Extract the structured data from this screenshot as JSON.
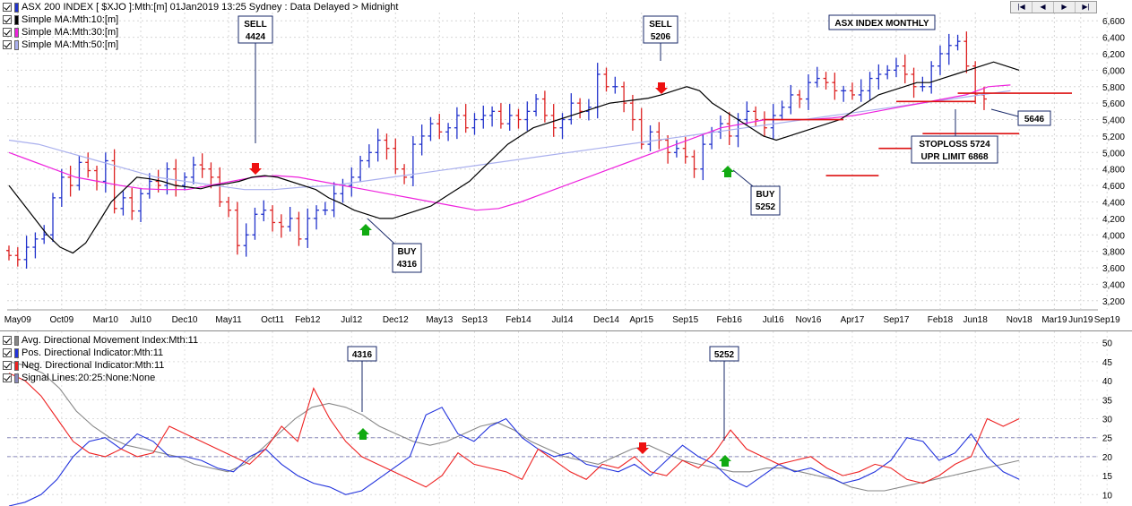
{
  "main_panel": {
    "legend": [
      {
        "label": "ASX 200 INDEX [ $XJO ]:Mth:[m]  01Jan2019 13:25 Sydney : Data Delayed > Midnight",
        "color": "#2233cc"
      },
      {
        "label": "Simple MA:Mth:10:[m]",
        "color": "#000000"
      },
      {
        "label": "Simple MA:Mth:30:[m]",
        "color": "#ee22dd"
      },
      {
        "label": "Simple MA:Mth:50:[m]",
        "color": "#aab0ee"
      }
    ],
    "title_box": "ASX INDEX MONTHLY",
    "nav_buttons": [
      "|◀",
      "◀",
      "▶",
      "▶|"
    ],
    "y_ticks": [
      "3,200",
      "3,400",
      "3,600",
      "3,800",
      "4,000",
      "4,200",
      "4,400",
      "4,600",
      "4,800",
      "5,000",
      "5,200",
      "5,400",
      "5,600",
      "5,800",
      "6,000",
      "6,200",
      "6,400",
      "6,600"
    ],
    "x_ticks": [
      "May09",
      "Oct09",
      "Mar10",
      "Jul10",
      "Dec10",
      "May11",
      "Oct11",
      "Feb12",
      "Jul12",
      "Dec12",
      "May13",
      "Sep13",
      "Feb14",
      "Jul14",
      "Dec14",
      "Apr15",
      "Sep15",
      "Feb16",
      "Jul16",
      "Nov16",
      "Apr17",
      "Sep17",
      "Feb18",
      "Jun18",
      "Nov18",
      "Mar19",
      "Jun19",
      "Sep19"
    ],
    "annotations": [
      {
        "id": "sell1",
        "lines": [
          "SELL",
          "4424"
        ]
      },
      {
        "id": "sell2",
        "lines": [
          "SELL",
          "5206"
        ]
      },
      {
        "id": "buy1",
        "lines": [
          "BUY",
          "4316"
        ]
      },
      {
        "id": "buy2",
        "lines": [
          "BUY",
          "5252"
        ]
      },
      {
        "id": "last",
        "lines": [
          "5646"
        ]
      },
      {
        "id": "stop",
        "lines": [
          "STOPLOSS 5724",
          "UPR LIMIT 6868"
        ]
      }
    ]
  },
  "indicator_panel": {
    "legend": [
      {
        "label": "Avg. Directional Movement Index:Mth:11",
        "color": "#888888"
      },
      {
        "label": "Pos. Directional Indicator:Mth:11",
        "color": "#2233dd"
      },
      {
        "label": "Neg. Directional Indicator:Mth:11",
        "color": "#ee2222"
      },
      {
        "label": "Signal Lines:20:25:None:None",
        "color": "#8888bb"
      }
    ],
    "y_ticks": [
      "10",
      "15",
      "20",
      "25",
      "30",
      "35",
      "40",
      "45",
      "50"
    ],
    "annotations": [
      {
        "id": "adx1",
        "lines": [
          "4316"
        ]
      },
      {
        "id": "adx2",
        "lines": [
          "5252"
        ]
      }
    ]
  },
  "chart_data": [
    {
      "type": "ohlc",
      "title": "ASX 200 INDEX [ $XJO ]:Mth:[m]",
      "ylim": [
        3100,
        6700
      ],
      "x_range": [
        "Apr09",
        "Oct19"
      ],
      "grid": true,
      "start_month": "2009-04",
      "closes": [
        3750,
        3700,
        3850,
        3950,
        4000,
        4450,
        4700,
        4600,
        4880,
        4780,
        4650,
        4900,
        4320,
        4450,
        4290,
        4500,
        4650,
        4600,
        4800,
        4600,
        4700,
        4850,
        4800,
        4700,
        4400,
        4300,
        3870,
        4000,
        4250,
        4300,
        4150,
        4100,
        4200,
        3950,
        4200,
        4300,
        4300,
        4500,
        4600,
        4700,
        4900,
        5000,
        5150,
        5050,
        4800,
        4700,
        5100,
        5200,
        5350,
        5250,
        5300,
        5450,
        5300,
        5400,
        5450,
        5500,
        5350,
        5450,
        5400,
        5500,
        5650,
        5450,
        5300,
        5400,
        5600,
        5500,
        5550,
        5950,
        5800,
        5800,
        5600,
        5400,
        5100,
        5250,
        5150,
        5000,
        5050,
        4950,
        4800,
        5100,
        5250,
        5350,
        5200,
        5400,
        5500,
        5400,
        5300,
        5450,
        5550,
        5700,
        5650,
        5850,
        5900,
        5850,
        5750,
        5750,
        5700,
        5750,
        5900,
        5950,
        6000,
        6050,
        5950,
        5800,
        5800,
        6050,
        6200,
        6300,
        6350,
        6050,
        5700,
        5650
      ],
      "ma10": [
        4600,
        4400,
        4200,
        4000,
        3850,
        3780,
        3900,
        4150,
        4400,
        4550,
        4700,
        4680,
        4650,
        4600,
        4580,
        4560,
        4600,
        4620,
        4650,
        4700,
        4720,
        4700,
        4650,
        4600,
        4550,
        4450,
        4380,
        4300,
        4250,
        4200,
        4200,
        4250,
        4300,
        4350,
        4450,
        4550,
        4650,
        4800,
        4950,
        5100,
        5200,
        5300,
        5350,
        5400,
        5450,
        5500,
        5550,
        5600,
        5620,
        5640,
        5660,
        5700,
        5750,
        5800,
        5750,
        5600,
        5500,
        5400,
        5300,
        5200,
        5150,
        5200,
        5250,
        5300,
        5350,
        5400,
        5500,
        5600,
        5700,
        5750,
        5800,
        5850,
        5850,
        5900,
        5950,
        6000,
        6050,
        6100,
        6050,
        6000
      ],
      "ma30": [
        5000,
        4900,
        4800,
        4700,
        4650,
        4600,
        4560,
        4550,
        4550,
        4600,
        4650,
        4700,
        4720,
        4700,
        4650,
        4600,
        4550,
        4500,
        4450,
        4400,
        4350,
        4300,
        4320,
        4400,
        4500,
        4600,
        4700,
        4800,
        4900,
        5000,
        5100,
        5200,
        5300,
        5350,
        5400,
        5400,
        5400,
        5420,
        5450,
        5500,
        5550,
        5600,
        5650,
        5700,
        5800,
        5820
      ],
      "ma50": [
        5150,
        5100,
        5000,
        4900,
        4800,
        4700,
        4650,
        4600,
        4550,
        4550,
        4580,
        4600,
        4650,
        4700,
        4750,
        4800,
        4850,
        4900,
        4950,
        5000,
        5050,
        5100,
        5150,
        5200,
        5250,
        5300,
        5350,
        5400,
        5450,
        5500,
        5550,
        5600,
        5650,
        5700,
        5750
      ],
      "hlines": [
        5400,
        4720,
        5050,
        5230,
        5620,
        5720
      ],
      "signals": [
        "sell",
        "sell",
        "buy",
        "buy"
      ]
    },
    {
      "type": "line",
      "title": "Directional Movement Index",
      "ylim": [
        7,
        53
      ],
      "grid": true,
      "series": [
        {
          "name": "Avg. Directional Movement Index:Mth:11",
          "values": [
            45,
            44,
            42,
            38,
            32,
            28,
            25,
            23,
            22,
            21,
            20,
            18,
            17,
            16,
            18,
            22,
            26,
            30,
            33,
            34,
            33,
            31,
            28,
            26,
            24,
            23,
            24,
            26,
            28,
            29,
            27,
            24,
            22,
            20,
            19,
            18,
            20,
            22,
            23,
            21,
            19,
            18,
            17,
            16,
            16,
            17,
            17,
            16,
            15,
            14,
            12,
            11,
            11,
            12,
            13,
            14,
            15,
            16,
            17,
            18,
            19
          ]
        },
        {
          "name": "Pos. Directional Indicator:Mth:11",
          "values": [
            7,
            8,
            10,
            14,
            20,
            24,
            25,
            22,
            26,
            24,
            20,
            20,
            19,
            17,
            16,
            20,
            22,
            18,
            15,
            13,
            12,
            10,
            11,
            14,
            17,
            20,
            31,
            33,
            26,
            24,
            28,
            30,
            25,
            22,
            20,
            21,
            18,
            17,
            16,
            18,
            15,
            19,
            23,
            20,
            18,
            14,
            12,
            15,
            18,
            16,
            17,
            15,
            13,
            14,
            16,
            19,
            25,
            24,
            19,
            21,
            26,
            20,
            16,
            14
          ]
        },
        {
          "name": "Neg. Directional Indicator:Mth:11",
          "values": [
            42,
            40,
            36,
            30,
            24,
            21,
            20,
            22,
            20,
            21,
            28,
            26,
            24,
            22,
            20,
            18,
            22,
            28,
            24,
            38,
            30,
            24,
            20,
            18,
            16,
            14,
            12,
            15,
            21,
            18,
            17,
            16,
            14,
            22,
            19,
            16,
            14,
            18,
            17,
            20,
            16,
            15,
            19,
            17,
            21,
            27,
            22,
            20,
            18,
            19,
            20,
            17,
            15,
            16,
            18,
            17,
            14,
            13,
            15,
            18,
            20,
            30,
            28,
            30
          ]
        },
        {
          "name": "Signal Lines:20:25:None:None",
          "values": [
            20,
            25
          ]
        }
      ]
    }
  ]
}
